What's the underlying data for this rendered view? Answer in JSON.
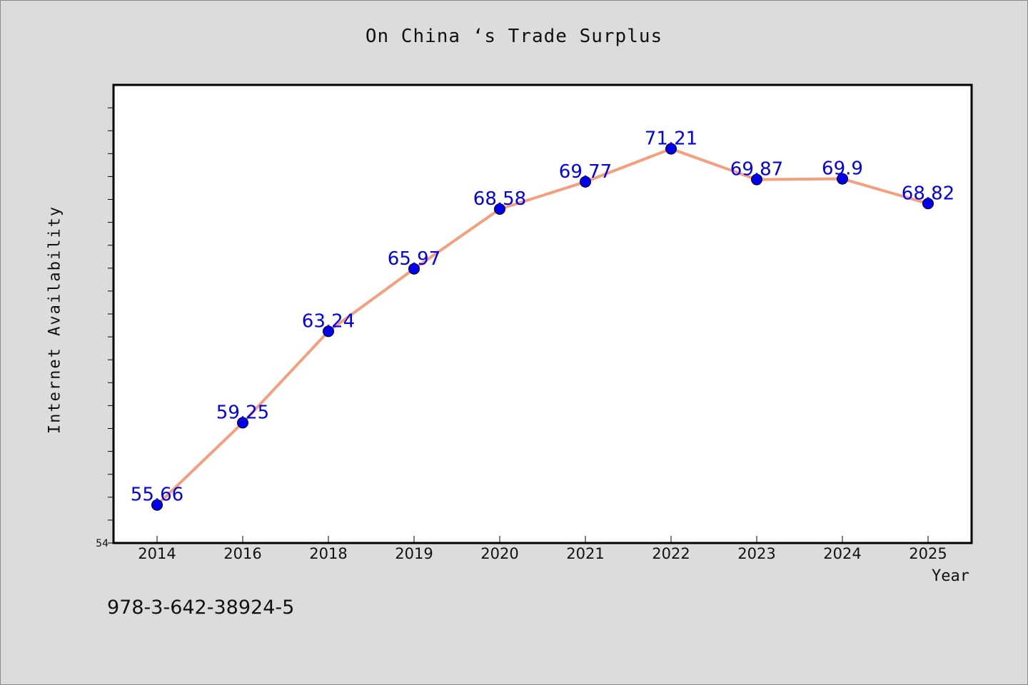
{
  "title": "On China ‘s Trade Surplus",
  "isbn": "978-3-642-38924-5",
  "colors": {
    "background": "#dcdcdc",
    "plot_background": "#ffffff",
    "line": "#f4a07e",
    "marker": "#0000ee",
    "data_label": "#0000ee"
  },
  "chart_data": {
    "type": "line",
    "title": "On China ‘s Trade Surplus",
    "xlabel": "Year",
    "ylabel": "Internet Availability",
    "categories": [
      "2014",
      "2016",
      "2018",
      "2019",
      "2020",
      "2021",
      "2022",
      "2023",
      "2024",
      "2025"
    ],
    "series": [
      {
        "values": [
          55.66,
          59.25,
          63.24,
          65.97,
          68.58,
          69.77,
          71.21,
          69.87,
          69.9,
          68.82
        ],
        "data_labels": [
          "55.66",
          "59.25",
          "63.24",
          "65.97",
          "68.58",
          "69.77",
          "71.21",
          "69.87",
          "69.9",
          "68.82"
        ]
      }
    ],
    "ylim": [
      54,
      74
    ],
    "y_tick_labels": [
      "54"
    ],
    "grid": false,
    "legend": "none"
  }
}
